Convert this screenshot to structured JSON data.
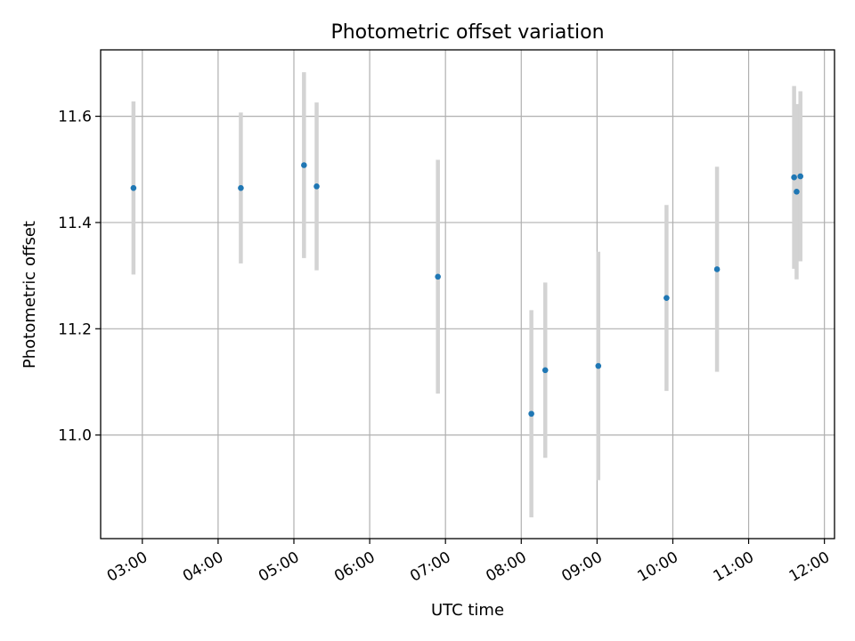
{
  "chart_data": {
    "type": "scatter",
    "title": "Photometric offset variation",
    "xlabel": "UTC time",
    "ylabel": "Photometric offset",
    "x_unit": "UTC hour of day",
    "xlim": [
      "02:27",
      "12:08"
    ],
    "ylim": [
      10.805,
      11.725
    ],
    "x_ticks": [
      "03:00",
      "04:00",
      "05:00",
      "06:00",
      "07:00",
      "08:00",
      "09:00",
      "10:00",
      "11:00",
      "12:00"
    ],
    "y_ticks": [
      "11.0",
      "11.2",
      "11.4",
      "11.6"
    ],
    "grid": true,
    "legend": "none",
    "colors": {
      "point": "#1f77b4",
      "error_bar": "#d3d3d3"
    },
    "points": [
      {
        "x": "02:53",
        "y": 11.465,
        "err": 0.163
      },
      {
        "x": "04:18",
        "y": 11.465,
        "err": 0.142
      },
      {
        "x": "05:08",
        "y": 11.508,
        "err": 0.175
      },
      {
        "x": "05:18",
        "y": 11.468,
        "err": 0.158
      },
      {
        "x": "06:54",
        "y": 11.298,
        "err": 0.22
      },
      {
        "x": "08:08",
        "y": 11.04,
        "err": 0.195
      },
      {
        "x": "08:19",
        "y": 11.122,
        "err": 0.165
      },
      {
        "x": "09:01",
        "y": 11.13,
        "err": 0.215
      },
      {
        "x": "09:55",
        "y": 11.258,
        "err": 0.175
      },
      {
        "x": "10:35",
        "y": 11.312,
        "err": 0.193
      },
      {
        "x": "11:36",
        "y": 11.485,
        "err": 0.172
      },
      {
        "x": "11:38",
        "y": 11.458,
        "err": 0.165
      },
      {
        "x": "11:41",
        "y": 11.487,
        "err": 0.16
      }
    ]
  }
}
